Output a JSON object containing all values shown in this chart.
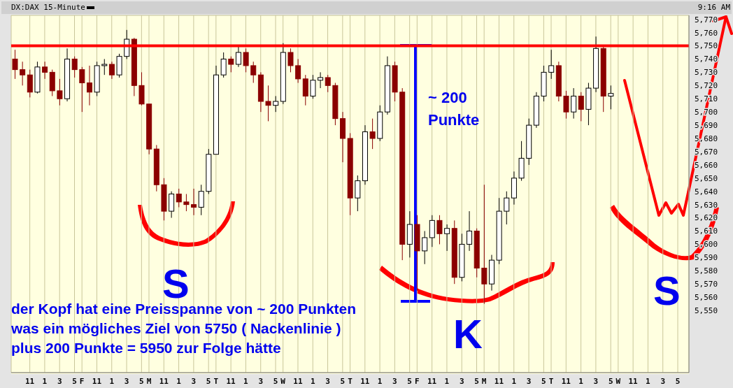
{
  "chart_data": {
    "type": "candlestick",
    "title": "DX:DAX 15-Minute",
    "categories": [
      null,
      null,
      "11",
      null,
      "1",
      null,
      "3",
      null,
      "5",
      "F",
      null,
      "11",
      null,
      "1",
      null,
      "3",
      null,
      "5",
      "M",
      null,
      "11",
      null,
      "1",
      null,
      "3",
      null,
      "5",
      "T",
      null,
      "11",
      null,
      "1",
      null,
      "3",
      null,
      "5",
      "W",
      null,
      "11",
      null,
      "1",
      null,
      "3",
      null,
      "5",
      "T",
      null,
      "11",
      null,
      "1",
      null,
      "3",
      null,
      "5",
      "F",
      null,
      "11",
      null,
      "1",
      null,
      "3",
      null,
      "5",
      "M",
      null,
      "11",
      null,
      "1",
      null,
      "3",
      null,
      "5",
      "T",
      null,
      "11",
      null,
      "1",
      null,
      "3",
      null,
      "5",
      "W",
      null,
      "11",
      null,
      "1",
      null,
      "3",
      null,
      "5",
      null
    ],
    "ohlc": [
      [
        5740,
        5747,
        5725,
        5732
      ],
      [
        5732,
        5738,
        5720,
        5728
      ],
      [
        5728,
        5732,
        5711,
        5715
      ],
      [
        5715,
        5738,
        5714,
        5734
      ],
      [
        5734,
        5738,
        5725,
        5730
      ],
      [
        5730,
        5732,
        5712,
        5716
      ],
      [
        5716,
        5725,
        5705,
        5710
      ],
      [
        5710,
        5748,
        5708,
        5740
      ],
      [
        5740,
        5742,
        5726,
        5732
      ],
      [
        5732,
        5734,
        5700,
        5722
      ],
      [
        5722,
        5735,
        5705,
        5715
      ],
      [
        5715,
        5738,
        5712,
        5735
      ],
      [
        5735,
        5740,
        5728,
        5736
      ],
      [
        5736,
        5738,
        5725,
        5728
      ],
      [
        5728,
        5744,
        5726,
        5742
      ],
      [
        5742,
        5762,
        5740,
        5755
      ],
      [
        5755,
        5756,
        5712,
        5720
      ],
      [
        5720,
        5730,
        5705,
        5706
      ],
      [
        5706,
        5706,
        5668,
        5672
      ],
      [
        5672,
        5675,
        5640,
        5645
      ],
      [
        5645,
        5650,
        5618,
        5625
      ],
      [
        5625,
        5640,
        5620,
        5638
      ],
      [
        5638,
        5642,
        5628,
        5632
      ],
      [
        5632,
        5638,
        5625,
        5630
      ],
      [
        5630,
        5642,
        5622,
        5628
      ],
      [
        5628,
        5645,
        5622,
        5640
      ],
      [
        5640,
        5672,
        5638,
        5668
      ],
      [
        5668,
        5735,
        5668,
        5728
      ],
      [
        5728,
        5745,
        5726,
        5740
      ],
      [
        5740,
        5742,
        5730,
        5736
      ],
      [
        5736,
        5750,
        5734,
        5745
      ],
      [
        5745,
        5748,
        5730,
        5735
      ],
      [
        5735,
        5738,
        5722,
        5728
      ],
      [
        5728,
        5730,
        5700,
        5708
      ],
      [
        5708,
        5720,
        5693,
        5705
      ],
      [
        5705,
        5712,
        5700,
        5708
      ],
      [
        5708,
        5752,
        5706,
        5745
      ],
      [
        5745,
        5748,
        5730,
        5735
      ],
      [
        5735,
        5740,
        5722,
        5725
      ],
      [
        5725,
        5728,
        5705,
        5712
      ],
      [
        5712,
        5728,
        5710,
        5724
      ],
      [
        5724,
        5730,
        5718,
        5726
      ],
      [
        5726,
        5728,
        5715,
        5720
      ],
      [
        5720,
        5722,
        5690,
        5695
      ],
      [
        5695,
        5700,
        5662,
        5680
      ],
      [
        5680,
        5684,
        5622,
        5635
      ],
      [
        5635,
        5652,
        5625,
        5648
      ],
      [
        5648,
        5690,
        5645,
        5685
      ],
      [
        5685,
        5695,
        5672,
        5680
      ],
      [
        5680,
        5705,
        5678,
        5700
      ],
      [
        5700,
        5742,
        5698,
        5735
      ],
      [
        5735,
        5738,
        5708,
        5715
      ],
      [
        5715,
        5718,
        5588,
        5600
      ],
      [
        5600,
        5625,
        5590,
        5615
      ],
      [
        5615,
        5622,
        5565,
        5595
      ],
      [
        5595,
        5610,
        5585,
        5605
      ],
      [
        5605,
        5622,
        5598,
        5618
      ],
      [
        5618,
        5622,
        5600,
        5608
      ],
      [
        5608,
        5615,
        5595,
        5612
      ],
      [
        5612,
        5618,
        5570,
        5575
      ],
      [
        5575,
        5608,
        5572,
        5600
      ],
      [
        5600,
        5625,
        5595,
        5610
      ],
      [
        5610,
        5612,
        5575,
        5582
      ],
      [
        5582,
        5645,
        5555,
        5570
      ],
      [
        5570,
        5592,
        5565,
        5588
      ],
      [
        5588,
        5635,
        5585,
        5625
      ],
      [
        5625,
        5640,
        5615,
        5635
      ],
      [
        5635,
        5655,
        5630,
        5650
      ],
      [
        5650,
        5678,
        5648,
        5665
      ],
      [
        5665,
        5695,
        5660,
        5690
      ],
      [
        5690,
        5715,
        5688,
        5712
      ],
      [
        5712,
        5735,
        5708,
        5730
      ],
      [
        5730,
        5747,
        5725,
        5735
      ],
      [
        5735,
        5738,
        5708,
        5712
      ],
      [
        5712,
        5716,
        5695,
        5700
      ],
      [
        5700,
        5718,
        5695,
        5712
      ],
      [
        5712,
        5715,
        5693,
        5702
      ],
      [
        5702,
        5722,
        5690,
        5718
      ],
      [
        5718,
        5757,
        5715,
        5748
      ],
      [
        5748,
        5750,
        5700,
        5712
      ],
      [
        5712,
        5720,
        5702,
        5714
      ],
      null,
      null,
      null,
      null,
      null,
      null,
      null,
      null,
      null,
      null
    ],
    "ylim": [
      5503,
      5773
    ],
    "yticks": [
      {
        "value": 5550,
        "label": "5,550"
      },
      {
        "value": 5560,
        "label": "5,560"
      },
      {
        "value": 5570,
        "label": "5,570"
      },
      {
        "value": 5580,
        "label": "5,580"
      },
      {
        "value": 5590,
        "label": "5,590"
      },
      {
        "value": 5600,
        "label": "5,600"
      },
      {
        "value": 5610,
        "label": "5,610"
      },
      {
        "value": 5620,
        "label": "5,620"
      },
      {
        "value": 5630,
        "label": "5,630"
      },
      {
        "value": 5640,
        "label": "5,640"
      },
      {
        "value": 5650,
        "label": "5,650"
      },
      {
        "value": 5660,
        "label": "5,660"
      },
      {
        "value": 5670,
        "label": "5,670"
      },
      {
        "value": 5680,
        "label": "5,680"
      },
      {
        "value": 5690,
        "label": "5,690"
      },
      {
        "value": 5700,
        "label": "5,700"
      },
      {
        "value": 5710,
        "label": "5,710"
      },
      {
        "value": 5720,
        "label": "5,720"
      },
      {
        "value": 5730,
        "label": "5,730"
      },
      {
        "value": 5740,
        "label": "5,740"
      },
      {
        "value": 5750,
        "label": "5,750"
      },
      {
        "value": 5760,
        "label": "5,760"
      },
      {
        "value": 5770,
        "label": "5,770"
      }
    ],
    "grid": true,
    "ref_lines": [
      {
        "axis": "y",
        "value": 5750,
        "color": "#ff0000"
      }
    ],
    "annotations": [
      "~ 200 Punkte",
      "S",
      "K",
      "S",
      "der Kopf hat eine Preisspanne von ~ 200 Punkten\nwas ein mögliches Ziel von 5750 ( Nackenlinie )\nplus 200 Punkte = 5950 zur Folge hätte",
      "9:16 AM"
    ]
  }
}
